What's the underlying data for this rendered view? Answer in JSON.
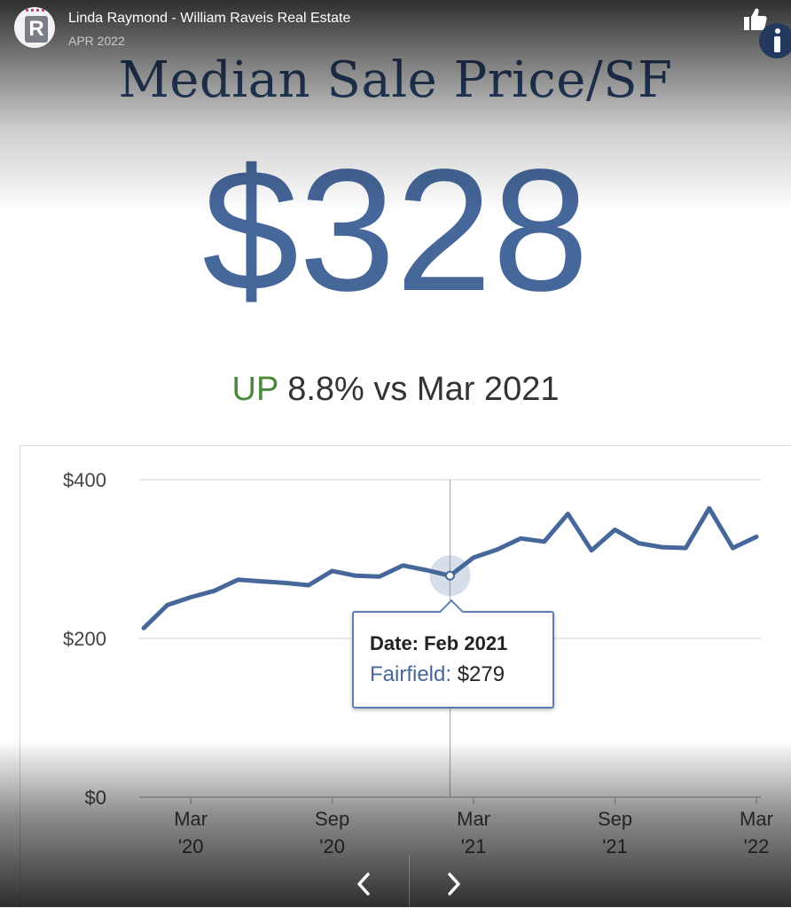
{
  "header": {
    "author": "Linda Raymond - William Raveis Real Estate",
    "date": "APR 2022",
    "avatar_icon": "raveis-logo",
    "like_icon": "thumbs-up-icon",
    "info_icon": "info-icon"
  },
  "card": {
    "title": "Median Sale Price/SF",
    "value": "$328",
    "change_direction": "UP",
    "change_text": "8.8% vs Mar 2021"
  },
  "tooltip": {
    "date_line": "Date: Feb 2021",
    "series_name": "Fairfield:",
    "series_value": "$279"
  },
  "chart_data": {
    "type": "line",
    "ylim": [
      0,
      400
    ],
    "y_ticks": [
      "$0",
      "$200",
      "$400"
    ],
    "y_tick_values": [
      0,
      200,
      400
    ],
    "x_tick_labels": [
      [
        "Mar",
        "'20"
      ],
      [
        "Sep",
        "'20"
      ],
      [
        "Mar",
        "'21"
      ],
      [
        "Sep",
        "'21"
      ],
      [
        "Mar",
        "'22"
      ]
    ],
    "x_tick_index": [
      2,
      8,
      14,
      20,
      26
    ],
    "x": [
      "Jan 2020",
      "Feb 2020",
      "Mar 2020",
      "Apr 2020",
      "May 2020",
      "Jun 2020",
      "Jul 2020",
      "Aug 2020",
      "Sep 2020",
      "Oct 2020",
      "Nov 2020",
      "Dec 2020",
      "Jan 2021",
      "Feb 2021",
      "Mar 2021",
      "Apr 2021",
      "May 2021",
      "Jun 2021",
      "Jul 2021",
      "Aug 2021",
      "Sep 2021",
      "Oct 2021",
      "Nov 2021",
      "Dec 2021",
      "Jan 2022",
      "Feb 2022",
      "Mar 2022"
    ],
    "series": [
      {
        "name": "Fairfield",
        "values": [
          213,
          242,
          252,
          260,
          274,
          272,
          270,
          267,
          285,
          279,
          278,
          292,
          286,
          279,
          302,
          312,
          326,
          322,
          357,
          311,
          337,
          320,
          315,
          314,
          364,
          314,
          328
        ]
      }
    ],
    "highlight_index": 13,
    "grid": true,
    "line_color": "#46679a"
  },
  "nav": {
    "prev_icon": "chevron-left-icon",
    "next_icon": "chevron-right-icon"
  }
}
